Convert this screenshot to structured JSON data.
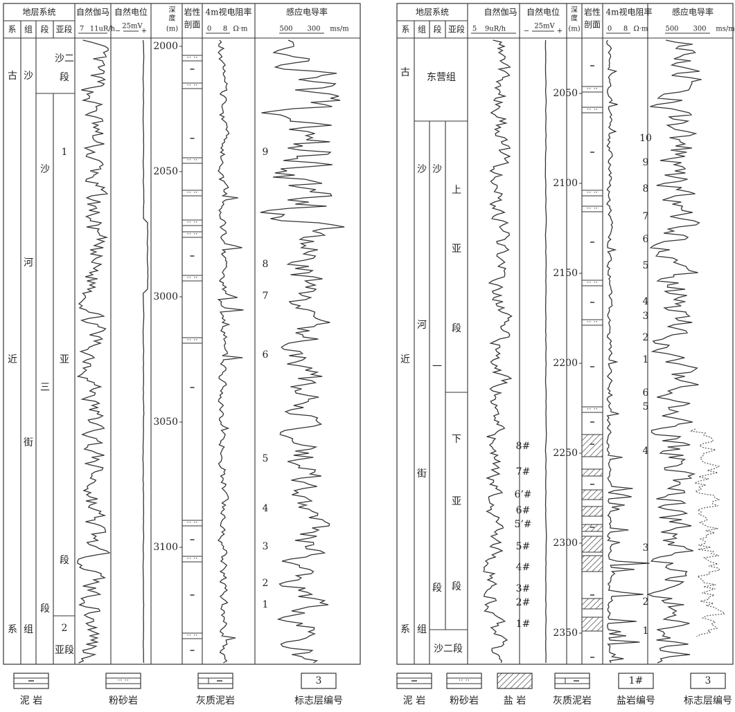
{
  "panels": [
    {
      "header": {
        "strat": "地层系统",
        "cols": [
          "系",
          "组",
          "段",
          "亚段"
        ],
        "gamma": "自然伽马",
        "gamma_scale": [
          "7",
          "11uR/h"
        ],
        "sp": "自然电位",
        "sp_scale": [
          "−",
          "25mV",
          "+"
        ],
        "depth": [
          "深",
          "度",
          "(m)"
        ],
        "litho": [
          "岩性",
          "剖面"
        ],
        "res": "4m视电阻率",
        "res_scale": [
          "0",
          "8",
          "Ω·m"
        ],
        "cond": "感应电导率",
        "cond_scale": [
          "500",
          "300",
          "ms/m"
        ]
      },
      "strat": [
        [
          "古",
          "近",
          "系"
        ],
        [
          "沙",
          "河",
          "街",
          "组"
        ],
        [
          "沙",
          "三",
          "段"
        ],
        [
          "1",
          "亚",
          "段"
        ]
      ],
      "top_unit": [
        "沙二",
        "段"
      ],
      "bottom_unit": [
        "2",
        "亚段"
      ],
      "depth_ticks": [
        2000,
        2050,
        3000,
        3050,
        3100
      ],
      "markers": [
        "9",
        "8",
        "7",
        "6",
        "5",
        "4",
        "3",
        "2",
        "1"
      ],
      "legend": [
        "泥 岩",
        "粉砂岩",
        "灰质泥岩",
        "标志层编号"
      ],
      "legend_box": [
        "3"
      ]
    },
    {
      "header": {
        "strat": "地层系统",
        "cols": [
          "系",
          "组",
          "段",
          "亚段"
        ],
        "gamma": "自然伽马",
        "gamma_scale": [
          "5",
          "9uR/h"
        ],
        "sp": "自然电位",
        "sp_scale": [
          "−",
          "25mV",
          "+"
        ],
        "depth": [
          "深",
          "度",
          "(m)"
        ],
        "litho": [
          "岩性",
          "剖面"
        ],
        "res": "4m视电阻率",
        "res_scale": [
          "0",
          "8",
          "Ω·m"
        ],
        "cond": "感应电导率",
        "cond_scale": [
          "500",
          "300",
          "ms/m"
        ]
      },
      "strat": [
        [
          "古",
          "近",
          "系"
        ],
        [
          "沙",
          "河",
          "街",
          "组"
        ],
        [
          "沙",
          "一",
          "段"
        ],
        [
          "上",
          "亚",
          "段",
          "下",
          "亚",
          "段"
        ]
      ],
      "top_unit": [
        "东营组"
      ],
      "bottom_unit": [
        "沙二段"
      ],
      "depth_ticks": [
        2050,
        2100,
        2150,
        2200,
        2250,
        2300,
        2350
      ],
      "markers": [
        "10",
        "9",
        "8",
        "7",
        "6",
        "5",
        "4",
        "3",
        "2",
        "1",
        "6",
        "5",
        "4",
        "3",
        "2",
        "1"
      ],
      "salt_markers": [
        "8#",
        "7#",
        "6’#",
        "6#",
        "5’#",
        "5#",
        "4#",
        "3#",
        "2#",
        "1#"
      ],
      "legend": [
        "泥 岩",
        "粉砂岩",
        "盐 岩",
        "灰质泥岩",
        "盐岩编号",
        "标志层编号"
      ],
      "legend_box": [
        "1#",
        "3"
      ]
    }
  ]
}
